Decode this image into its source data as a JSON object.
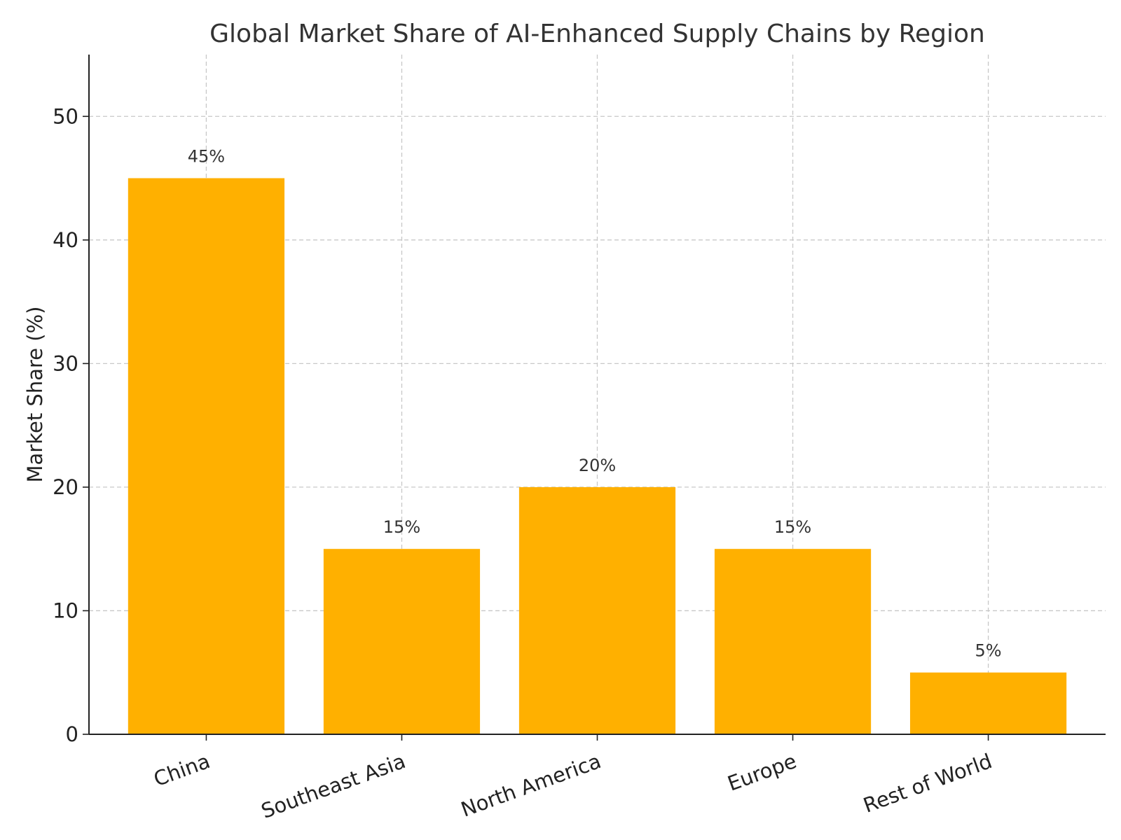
{
  "chart_data": {
    "type": "bar",
    "title": "Global Market Share of AI-Enhanced Supply Chains by Region",
    "xlabel": "",
    "ylabel": "Market Share (%)",
    "categories": [
      "China",
      "Southeast Asia",
      "North America",
      "Europe",
      "Rest of World"
    ],
    "values": [
      45,
      15,
      20,
      15,
      5
    ],
    "value_labels": [
      "45%",
      "15%",
      "20%",
      "15%",
      "5%"
    ],
    "ylim": [
      0,
      55
    ],
    "yticks": [
      0,
      10,
      20,
      30,
      40,
      50
    ],
    "bar_color": "#FFB000",
    "grid": true,
    "x_tick_rotation_deg": 20
  }
}
